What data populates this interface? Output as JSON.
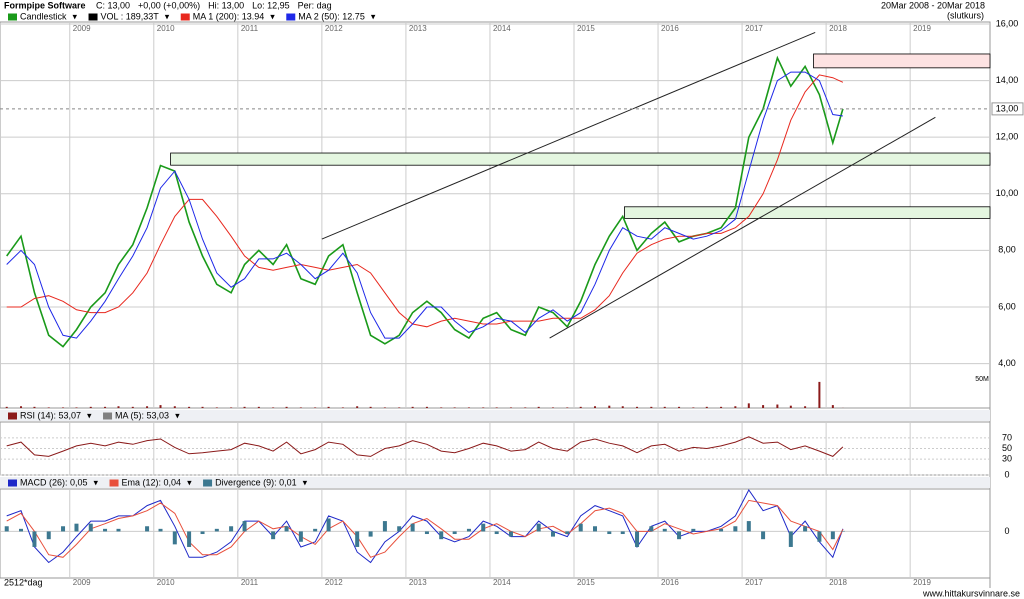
{
  "chart_data": [
    {
      "type": "line",
      "title": "Formpipe Software",
      "subtitle": "20Mar 2008 - 20Mar 2018",
      "note": "(slutkurs)",
      "stats": [
        "C: 13,00",
        "+0,00 (+0,00%)",
        "Hi: 13,00",
        "Lo: 12,95",
        "Per: dag"
      ],
      "x": [
        2008.25,
        2008.42,
        2008.58,
        2008.75,
        2008.92,
        2009.08,
        2009.25,
        2009.42,
        2009.58,
        2009.75,
        2009.92,
        2010.08,
        2010.25,
        2010.42,
        2010.58,
        2010.75,
        2010.92,
        2011.08,
        2011.25,
        2011.42,
        2011.58,
        2011.75,
        2011.92,
        2012.08,
        2012.25,
        2012.42,
        2012.58,
        2012.75,
        2012.92,
        2013.08,
        2013.25,
        2013.42,
        2013.58,
        2013.75,
        2013.92,
        2014.08,
        2014.25,
        2014.42,
        2014.58,
        2014.75,
        2014.92,
        2015.08,
        2015.25,
        2015.42,
        2015.58,
        2015.75,
        2015.92,
        2016.08,
        2016.25,
        2016.42,
        2016.58,
        2016.75,
        2016.92,
        2017.08,
        2017.25,
        2017.42,
        2017.58,
        2017.75,
        2017.92,
        2018.08,
        2018.2
      ],
      "series": [
        {
          "name": "Candlestick",
          "color": "#1a9a1a",
          "values": [
            7.8,
            8.5,
            6.5,
            5.0,
            4.6,
            5.2,
            6.0,
            6.5,
            7.5,
            8.2,
            9.5,
            11.0,
            10.8,
            9.0,
            7.8,
            6.8,
            6.5,
            7.5,
            8.0,
            7.5,
            8.2,
            7.0,
            6.8,
            7.8,
            8.2,
            6.5,
            5.0,
            4.7,
            5.0,
            5.8,
            6.2,
            5.8,
            5.2,
            4.9,
            5.6,
            5.8,
            5.2,
            5.0,
            6.0,
            5.8,
            5.3,
            6.2,
            7.5,
            8.5,
            9.2,
            8.0,
            8.6,
            9.0,
            8.3,
            8.5,
            8.6,
            8.8,
            9.5,
            12.0,
            13.0,
            14.8,
            13.8,
            14.5,
            13.5,
            11.8,
            13.0
          ]
        },
        {
          "name": "VOL : 189,33T",
          "color": "#000000",
          "axis": "y2",
          "values": [
            2,
            3,
            2,
            1,
            1,
            1,
            2,
            2,
            3,
            2,
            3,
            5,
            3,
            2,
            2,
            1,
            1,
            2,
            2,
            1,
            2,
            1,
            1,
            2,
            1,
            3,
            2,
            1,
            1,
            2,
            2,
            1,
            1,
            1,
            1,
            1,
            1,
            1,
            2,
            1,
            1,
            2,
            3,
            4,
            3,
            2,
            2,
            2,
            2,
            1,
            2,
            2,
            3,
            8,
            5,
            6,
            4,
            3,
            45,
            5,
            0.19
          ]
        },
        {
          "name": "MA 1 (200): 13.94",
          "color": "#e8281e",
          "values": [
            6.0,
            6.0,
            6.3,
            6.4,
            6.2,
            5.9,
            5.8,
            5.8,
            6.0,
            6.5,
            7.2,
            8.2,
            9.2,
            9.8,
            9.8,
            9.2,
            8.5,
            7.8,
            7.4,
            7.3,
            7.4,
            7.5,
            7.4,
            7.3,
            7.4,
            7.5,
            7.2,
            6.5,
            5.8,
            5.4,
            5.3,
            5.5,
            5.6,
            5.5,
            5.4,
            5.4,
            5.5,
            5.5,
            5.5,
            5.6,
            5.6,
            5.6,
            5.9,
            6.4,
            7.2,
            7.9,
            8.2,
            8.4,
            8.5,
            8.5,
            8.6,
            8.6,
            8.8,
            9.2,
            10.0,
            11.2,
            12.6,
            13.6,
            14.2,
            14.1,
            13.94
          ]
        },
        {
          "name": "MA 2 (50): 12.75",
          "color": "#1e28e8",
          "values": [
            7.5,
            8.0,
            7.5,
            6.0,
            5.0,
            4.9,
            5.5,
            6.2,
            7.0,
            7.8,
            8.8,
            10.2,
            10.8,
            9.8,
            8.4,
            7.2,
            6.7,
            7.0,
            7.7,
            7.7,
            7.9,
            7.5,
            7.0,
            7.3,
            7.9,
            7.2,
            5.8,
            4.9,
            4.9,
            5.4,
            6.0,
            6.0,
            5.5,
            5.1,
            5.3,
            5.6,
            5.5,
            5.1,
            5.6,
            5.9,
            5.5,
            5.8,
            6.8,
            8.0,
            8.8,
            8.5,
            8.4,
            8.8,
            8.6,
            8.4,
            8.5,
            8.7,
            9.1,
            10.8,
            12.6,
            14.0,
            14.3,
            14.3,
            14.0,
            12.8,
            12.75
          ]
        }
      ],
      "xlim": [
        2008.17,
        2019.95
      ],
      "xticks": [
        2009,
        2010,
        2011,
        2012,
        2013,
        2014,
        2015,
        2016,
        2017,
        2018,
        2019
      ],
      "ylim": [
        2.43,
        16.07
      ],
      "yticks": [
        {
          "value": 16,
          "label": "16,00"
        },
        {
          "value": 14,
          "label": "14,00"
        },
        {
          "value": 12,
          "label": "12,00"
        },
        {
          "value": 10,
          "label": "10,00"
        },
        {
          "value": 8,
          "label": "8,00"
        },
        {
          "value": 6,
          "label": "6,00"
        },
        {
          "value": 4,
          "label": "4,00"
        }
      ],
      "y2lim": [
        0,
        50
      ],
      "y2ticks": [
        {
          "value": 50,
          "label": "50M"
        }
      ],
      "last": {
        "value": 13,
        "label": "13,00"
      },
      "zones": [
        {
          "x": [
            2017.85,
            2019.95
          ],
          "y": [
            14.45,
            14.94
          ],
          "color": "#fde2e2"
        },
        {
          "x": [
            2010.2,
            2019.95
          ],
          "y": [
            11.01,
            11.44
          ],
          "color": "#e4f6e0"
        },
        {
          "x": [
            2015.6,
            2019.95
          ],
          "y": [
            9.13,
            9.54
          ],
          "color": "#e4f6e0"
        }
      ],
      "lines": [
        {
          "x": [
            2012.0,
            2017.87
          ],
          "y": [
            8.4,
            15.7
          ]
        },
        {
          "x": [
            2014.71,
            2019.3
          ],
          "y": [
            4.9,
            12.7
          ]
        }
      ],
      "grid": true
    },
    {
      "type": "line",
      "x": [
        2008.25,
        2008.42,
        2008.58,
        2008.75,
        2008.92,
        2009.08,
        2009.25,
        2009.42,
        2009.58,
        2009.75,
        2009.92,
        2010.08,
        2010.25,
        2010.42,
        2010.58,
        2010.75,
        2010.92,
        2011.08,
        2011.25,
        2011.42,
        2011.58,
        2011.75,
        2011.92,
        2012.08,
        2012.25,
        2012.42,
        2012.58,
        2012.75,
        2012.92,
        2013.08,
        2013.25,
        2013.42,
        2013.58,
        2013.75,
        2013.92,
        2014.08,
        2014.25,
        2014.42,
        2014.58,
        2014.75,
        2014.92,
        2015.08,
        2015.25,
        2015.42,
        2015.58,
        2015.75,
        2015.92,
        2016.08,
        2016.25,
        2016.42,
        2016.58,
        2016.75,
        2016.92,
        2017.08,
        2017.25,
        2017.42,
        2017.58,
        2017.75,
        2017.92,
        2018.08,
        2018.2
      ],
      "series": [
        {
          "name": "RSI (14): 53,07",
          "color": "#8b1a1a",
          "values": [
            55,
            62,
            38,
            35,
            45,
            55,
            60,
            55,
            62,
            58,
            65,
            68,
            52,
            40,
            42,
            45,
            48,
            60,
            55,
            45,
            62,
            40,
            48,
            62,
            58,
            38,
            35,
            50,
            55,
            65,
            58,
            45,
            42,
            50,
            60,
            55,
            45,
            48,
            62,
            50,
            45,
            62,
            68,
            60,
            55,
            42,
            55,
            58,
            45,
            52,
            50,
            55,
            62,
            72,
            60,
            62,
            48,
            55,
            45,
            35,
            53
          ]
        },
        {
          "name": "MA (5): 53,03",
          "color": "#808080",
          "legend_only": true
        }
      ],
      "xlim": [
        2008.17,
        2019.95
      ],
      "ylim": [
        0,
        100
      ],
      "yticks": [
        70,
        50,
        30,
        0
      ],
      "grid": true
    },
    {
      "type": "line",
      "period_label": "2512*dag",
      "source": "www.hittakursvinnare.se",
      "x": [
        2008.25,
        2008.42,
        2008.58,
        2008.75,
        2008.92,
        2009.08,
        2009.25,
        2009.42,
        2009.58,
        2009.75,
        2009.92,
        2010.08,
        2010.25,
        2010.42,
        2010.58,
        2010.75,
        2010.92,
        2011.08,
        2011.25,
        2011.42,
        2011.58,
        2011.75,
        2011.92,
        2012.08,
        2012.25,
        2012.42,
        2012.58,
        2012.75,
        2012.92,
        2013.08,
        2013.25,
        2013.42,
        2013.58,
        2013.75,
        2013.92,
        2014.08,
        2014.25,
        2014.42,
        2014.58,
        2014.75,
        2014.92,
        2015.08,
        2015.25,
        2015.42,
        2015.58,
        2015.75,
        2015.92,
        2016.08,
        2016.25,
        2016.42,
        2016.58,
        2016.75,
        2016.92,
        2017.08,
        2017.25,
        2017.42,
        2017.58,
        2017.75,
        2017.92,
        2018.08,
        2018.2
      ],
      "series": [
        {
          "name": "MACD (26): 0,05",
          "color": "#1e28c8",
          "values": [
            0.3,
            0.4,
            -0.3,
            -0.6,
            -0.4,
            -0.1,
            0.2,
            0.2,
            0.3,
            0.3,
            0.5,
            0.6,
            0.1,
            -0.5,
            -0.5,
            -0.4,
            -0.2,
            0.2,
            0.2,
            -0.1,
            0.2,
            -0.3,
            -0.2,
            0.3,
            0.2,
            -0.4,
            -0.6,
            -0.2,
            0.0,
            0.3,
            0.2,
            -0.1,
            -0.2,
            -0.1,
            0.2,
            0.1,
            -0.1,
            -0.1,
            0.2,
            0.0,
            -0.1,
            0.3,
            0.5,
            0.4,
            0.3,
            -0.3,
            0.1,
            0.2,
            -0.1,
            0.0,
            0.0,
            0.1,
            0.3,
            0.8,
            0.4,
            0.5,
            -0.1,
            0.2,
            -0.2,
            -0.5,
            0.05
          ]
        },
        {
          "name": "Ema (12): 0,04",
          "color": "#e8503c",
          "values": [
            0.2,
            0.35,
            0.0,
            -0.45,
            -0.5,
            -0.25,
            0.05,
            0.15,
            0.25,
            0.3,
            0.4,
            0.55,
            0.35,
            -0.2,
            -0.45,
            -0.45,
            -0.3,
            0.0,
            0.2,
            0.05,
            0.1,
            -0.1,
            -0.25,
            0.05,
            0.2,
            -0.1,
            -0.5,
            -0.4,
            -0.1,
            0.15,
            0.25,
            0.05,
            -0.15,
            -0.15,
            0.05,
            0.15,
            0.0,
            -0.1,
            0.05,
            0.1,
            -0.05,
            0.15,
            0.4,
            0.45,
            0.35,
            0.0,
            0.0,
            0.15,
            0.05,
            -0.05,
            0.0,
            0.05,
            0.2,
            0.6,
            0.55,
            0.5,
            0.2,
            0.1,
            0.0,
            -0.35,
            0.04
          ]
        },
        {
          "name": "Divergence (9): 0,01",
          "color": "#3c7890",
          "type": "bar",
          "values": [
            0.1,
            0.05,
            -0.3,
            -0.15,
            0.1,
            0.15,
            0.15,
            0.05,
            0.05,
            0,
            0.1,
            0.05,
            -0.25,
            -0.3,
            -0.05,
            0.05,
            0.1,
            0.2,
            0,
            -0.15,
            0.1,
            -0.2,
            0.05,
            0.25,
            0,
            -0.3,
            -0.1,
            0.2,
            0.1,
            0.15,
            -0.05,
            -0.15,
            -0.05,
            0.05,
            0.15,
            -0.05,
            -0.1,
            0,
            0.15,
            -0.1,
            -0.05,
            0.15,
            0.1,
            -0.05,
            -0.05,
            -0.3,
            0.1,
            0.05,
            -0.15,
            0.05,
            0,
            0.05,
            0.1,
            0.2,
            -0.15,
            0,
            -0.3,
            0.1,
            -0.2,
            -0.15,
            0.01
          ]
        }
      ],
      "xlim": [
        2008.17,
        2019.95
      ],
      "xticks": [
        2009,
        2010,
        2011,
        2012,
        2013,
        2014,
        2015,
        2016,
        2017,
        2018,
        2019
      ],
      "ylim": [
        -0.9,
        0.82
      ],
      "yticks": [
        0
      ],
      "grid": true
    }
  ]
}
